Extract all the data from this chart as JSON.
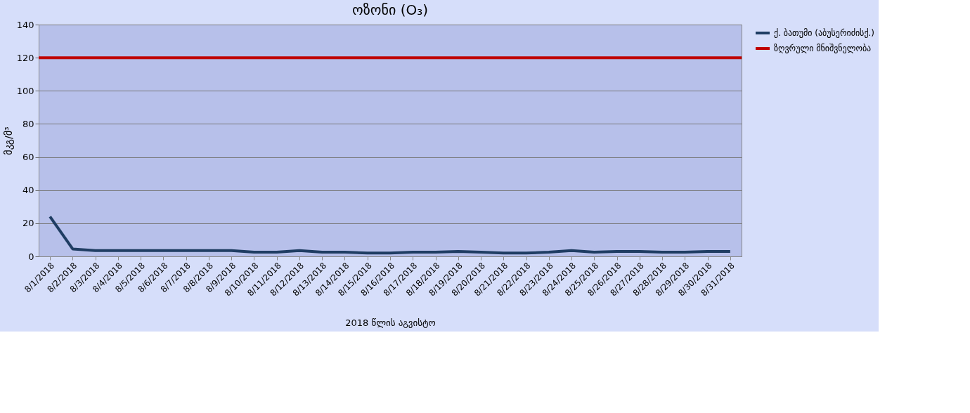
{
  "chart_data": {
    "type": "line",
    "title": "ოზონი (O₃)",
    "xlabel": "2018 წლის აგვისტო",
    "ylabel": "მკგ/მ³",
    "categories": [
      "8/1/2018",
      "8/2/2018",
      "8/3/2018",
      "8/4/2018",
      "8/5/2018",
      "8/6/2018",
      "8/7/2018",
      "8/8/2018",
      "8/9/2018",
      "8/10/2018",
      "8/11/2018",
      "8/12/2018",
      "8/13/2018",
      "8/14/2018",
      "8/15/2018",
      "8/16/2018",
      "8/17/2018",
      "8/18/2018",
      "8/19/2018",
      "8/20/2018",
      "8/21/2018",
      "8/22/2018",
      "8/23/2018",
      "8/24/2018",
      "8/25/2018",
      "8/26/2018",
      "8/27/2018",
      "8/28/2018",
      "8/29/2018",
      "8/30/2018",
      "8/31/2018"
    ],
    "series": [
      {
        "name": "ქ. ბათუმი (აბუსერიძისქ.)",
        "color": "#1f3d63",
        "values": [
          24,
          4.5,
          3.5,
          3.5,
          3.5,
          3.5,
          3.5,
          3.5,
          3.5,
          2.5,
          2.5,
          3.5,
          2.5,
          2.5,
          2,
          2,
          2.5,
          2.5,
          3,
          2.5,
          2,
          2,
          2.5,
          3.5,
          2.5,
          3,
          3,
          2.5,
          2.5,
          3,
          3
        ]
      }
    ],
    "ref_lines": [
      {
        "axis": "y",
        "value": 120,
        "label": "ზღვრული მნიშვნელობა",
        "color": "#c00000"
      }
    ],
    "ylim": [
      0,
      140
    ],
    "yticks": [
      0,
      20,
      40,
      60,
      80,
      100,
      120,
      140
    ],
    "grid": "y",
    "legend": "right",
    "marker": "none",
    "line_style": "solid"
  }
}
